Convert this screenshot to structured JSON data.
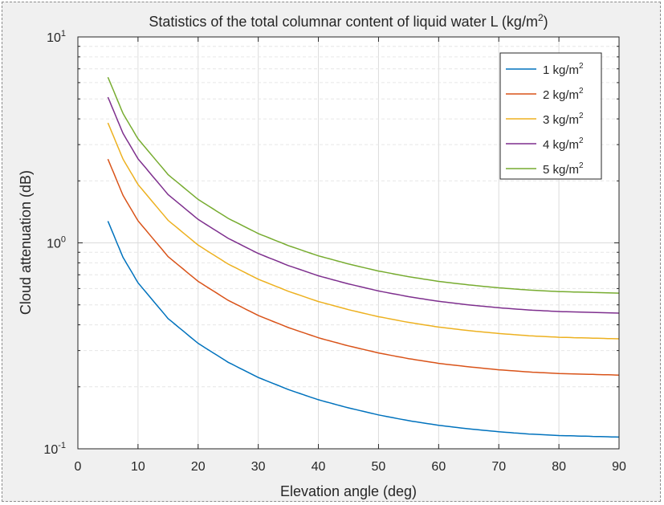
{
  "chart_data": {
    "type": "line",
    "title": "Statistics of the total columnar content of liquid water L (kg/m",
    "title_sup": "2",
    "title_end": ")",
    "xlabel": "Elevation angle (deg)",
    "ylabel": "Cloud attenuation (dB)",
    "x_scale": "linear",
    "y_scale": "log",
    "xlim": [
      0,
      90
    ],
    "ylim": [
      0.1,
      10
    ],
    "x_ticks": [
      0,
      10,
      20,
      30,
      40,
      50,
      60,
      70,
      80,
      90
    ],
    "y_ticks": [
      {
        "base": "10",
        "exp": "-1"
      },
      {
        "base": "10",
        "exp": "0"
      },
      {
        "base": "10",
        "exp": "1"
      }
    ],
    "grid": true,
    "minor_grid": true,
    "legend_position": "top-right",
    "x": [
      5,
      7.5,
      10,
      15,
      20,
      25,
      30,
      35,
      40,
      45,
      50,
      55,
      60,
      65,
      70,
      75,
      80,
      85,
      90
    ],
    "series": [
      {
        "name": "1 kg/m",
        "sup": "2",
        "color": "#0072bd",
        "values": [
          1.275,
          0.851,
          0.64,
          0.429,
          0.325,
          0.263,
          0.222,
          0.194,
          0.173,
          0.158,
          0.146,
          0.137,
          0.13,
          0.125,
          0.121,
          0.118,
          0.116,
          0.115,
          0.114
        ]
      },
      {
        "name": "2 kg/m",
        "sup": "2",
        "color": "#d95319",
        "values": [
          2.55,
          1.702,
          1.28,
          0.858,
          0.65,
          0.526,
          0.444,
          0.388,
          0.346,
          0.316,
          0.292,
          0.274,
          0.26,
          0.25,
          0.242,
          0.236,
          0.232,
          0.23,
          0.228
        ]
      },
      {
        "name": "3 kg/m",
        "sup": "2",
        "color": "#edb120",
        "values": [
          3.825,
          2.553,
          1.92,
          1.287,
          0.975,
          0.789,
          0.666,
          0.582,
          0.519,
          0.474,
          0.438,
          0.411,
          0.39,
          0.375,
          0.363,
          0.354,
          0.348,
          0.345,
          0.342
        ]
      },
      {
        "name": "4 kg/m",
        "sup": "2",
        "color": "#7e2f8e",
        "values": [
          5.1,
          3.404,
          2.56,
          1.716,
          1.3,
          1.052,
          0.888,
          0.776,
          0.692,
          0.632,
          0.584,
          0.548,
          0.52,
          0.5,
          0.484,
          0.472,
          0.464,
          0.46,
          0.456
        ]
      },
      {
        "name": "5 kg/m",
        "sup": "2",
        "color": "#77ac30",
        "values": [
          6.375,
          4.255,
          3.2,
          2.145,
          1.625,
          1.315,
          1.11,
          0.97,
          0.865,
          0.79,
          0.73,
          0.685,
          0.65,
          0.625,
          0.605,
          0.59,
          0.58,
          0.575,
          0.57
        ]
      }
    ]
  }
}
